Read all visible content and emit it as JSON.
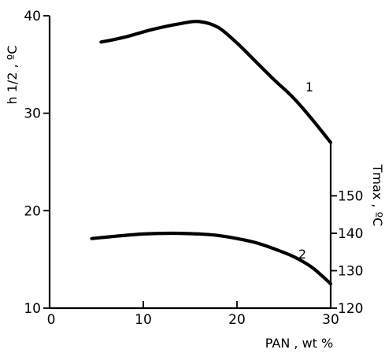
{
  "chart_data": {
    "type": "line",
    "x_axis": {
      "label": "PAN , wt %",
      "range": [
        0,
        30
      ],
      "ticks": [
        0,
        10,
        20,
        30
      ],
      "tick_labels": [
        "0",
        "10",
        "20",
        "30"
      ]
    },
    "y_axis_left": {
      "label": "h 1/2 , ºC",
      "range": [
        10,
        40
      ],
      "ticks": [
        10,
        20,
        30,
        40
      ],
      "tick_labels": [
        "10",
        "20",
        "30",
        "40"
      ]
    },
    "y_axis_right": {
      "label": "Tmax , ºC",
      "range": [
        120,
        155
      ],
      "ticks": [
        120,
        130,
        140,
        150
      ],
      "tick_labels": [
        "120",
        "130",
        "140",
        "150"
      ]
    },
    "series": [
      {
        "name": "1",
        "axis": "left",
        "x": [
          5.5,
          8,
          11,
          14,
          16,
          18,
          20,
          22,
          24,
          26,
          28,
          30
        ],
        "y": [
          37.3,
          37.8,
          38.6,
          39.2,
          39.4,
          38.8,
          37.2,
          35.3,
          33.4,
          31.6,
          29.4,
          27.0
        ]
      },
      {
        "name": "2",
        "axis": "right",
        "x": [
          4.5,
          7,
          10,
          13,
          16,
          18,
          20,
          22,
          24,
          26,
          28,
          30
        ],
        "y": [
          138.6,
          139.2,
          139.8,
          140.0,
          139.8,
          139.4,
          138.6,
          137.5,
          135.8,
          133.8,
          130.9,
          126.5
        ]
      }
    ],
    "grid": false,
    "legend": "none"
  }
}
